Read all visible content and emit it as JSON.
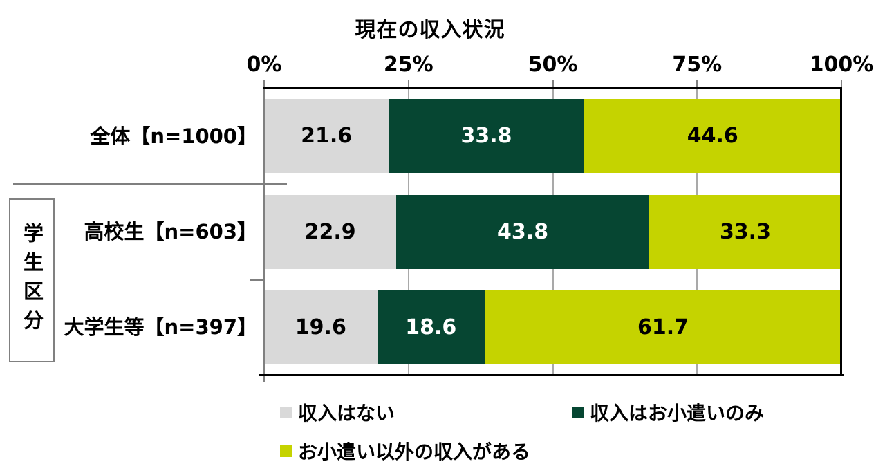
{
  "chart_data": {
    "type": "bar",
    "subtype": "horizontal-stacked-percentage",
    "title": "現在の収入状況",
    "group_label": "学生区分",
    "categories": [
      "全体【n=1000】",
      "高校生【n=603】",
      "大学生等【n=397】"
    ],
    "series": [
      {
        "name": "収入はない",
        "color": "#d9d9d9",
        "label_color": "#000000",
        "values": [
          21.6,
          22.9,
          19.6
        ]
      },
      {
        "name": "収入はお小遣いのみ",
        "color": "#064632",
        "label_color": "#ffffff",
        "values": [
          33.8,
          43.8,
          18.6
        ]
      },
      {
        "name": "お小遣い以外の収入がある",
        "color": "#c5d300",
        "label_color": "#000000",
        "values": [
          44.6,
          33.3,
          61.7
        ]
      }
    ],
    "x_axis": {
      "ticks": [
        "0%",
        "25%",
        "50%",
        "75%",
        "100%"
      ],
      "range": [
        0,
        100
      ]
    },
    "grid": true,
    "legend_position": "bottom",
    "axis_color": "#808080",
    "gridline_color": "#a9a9a9",
    "border_color": "#000000"
  }
}
